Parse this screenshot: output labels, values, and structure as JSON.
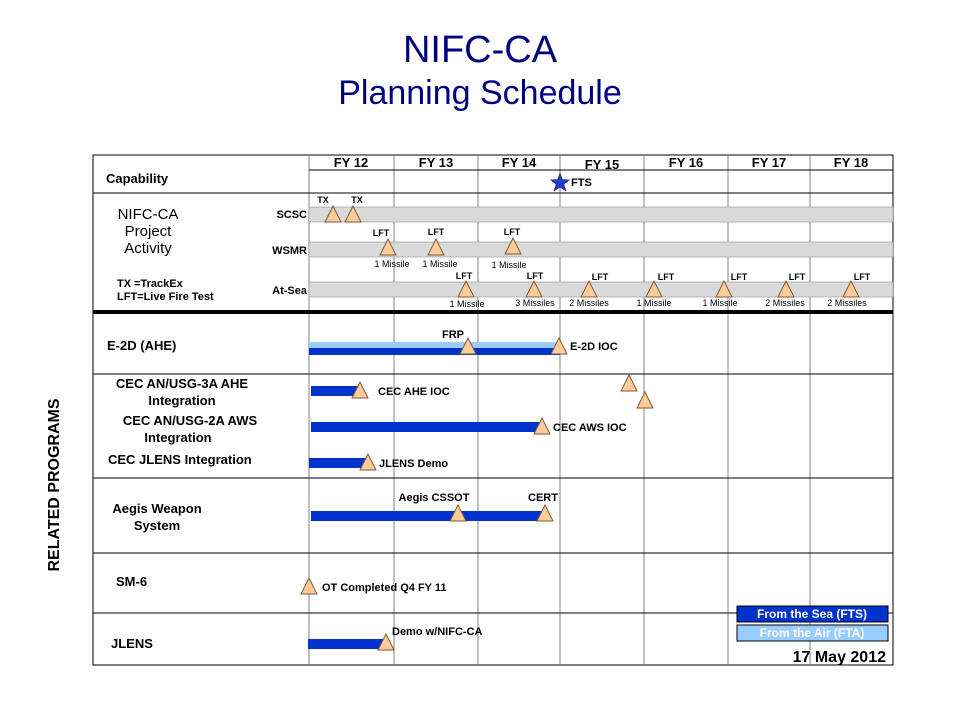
{
  "title": "NIFC-CA",
  "subtitle": "Planning Schedule",
  "side_label": "RELATED PROGRAMS",
  "date": "17 May 2012",
  "fiscal_years": [
    "FY 12",
    "FY 13",
    "FY 14",
    "FY 15",
    "FY 16",
    "FY 17",
    "FY 18"
  ],
  "rows": {
    "capability": "Capability",
    "project_activity": [
      "NIFC-CA",
      "Project",
      "Activity"
    ],
    "legend_text": [
      "TX =TrackEx",
      "LFT=Live Fire Test"
    ],
    "tracks": [
      "SCSC",
      "WSMR",
      "At-Sea"
    ],
    "e2d": "E-2D (AHE)",
    "cec_ahe": [
      "CEC AN/USG-3A AHE",
      "Integration"
    ],
    "cec_aws": [
      "CEC AN/USG-2A AWS",
      "Integration"
    ],
    "cec_jlens": "CEC JLENS Integration",
    "aegis": [
      "Aegis Weapon",
      "System"
    ],
    "sm6": "SM-6",
    "jlens": "JLENS"
  },
  "markers": {
    "fts": "FTS",
    "tx": "TX",
    "lft": "LFT",
    "one_missile": "1 Missile",
    "two_missiles": "2 Missiles",
    "three_missiles": "3 Missiles",
    "frp": "FRP",
    "e2d_ioc": "E-2D IOC",
    "cec_ahe_ioc": "CEC AHE IOC",
    "cec_aws_ioc": "CEC AWS IOC",
    "jlens_demo": "JLENS Demo",
    "aegis_cssot": "Aegis CSSOT",
    "cert": "CERT",
    "ot_completed": "OT Completed  Q4 FY 11",
    "demo_nifc": "Demo w/NIFC-CA"
  },
  "legend": {
    "sea": "From the Sea (FTS)",
    "air": "From the Air (FTA)"
  },
  "colors": {
    "title": "#000080",
    "bar_dark": "#0033cc",
    "bar_light": "#99ccff",
    "triangle_fill": "#ffcc99",
    "track_band": "#d9d9d9",
    "star": "#1f3fbf"
  }
}
